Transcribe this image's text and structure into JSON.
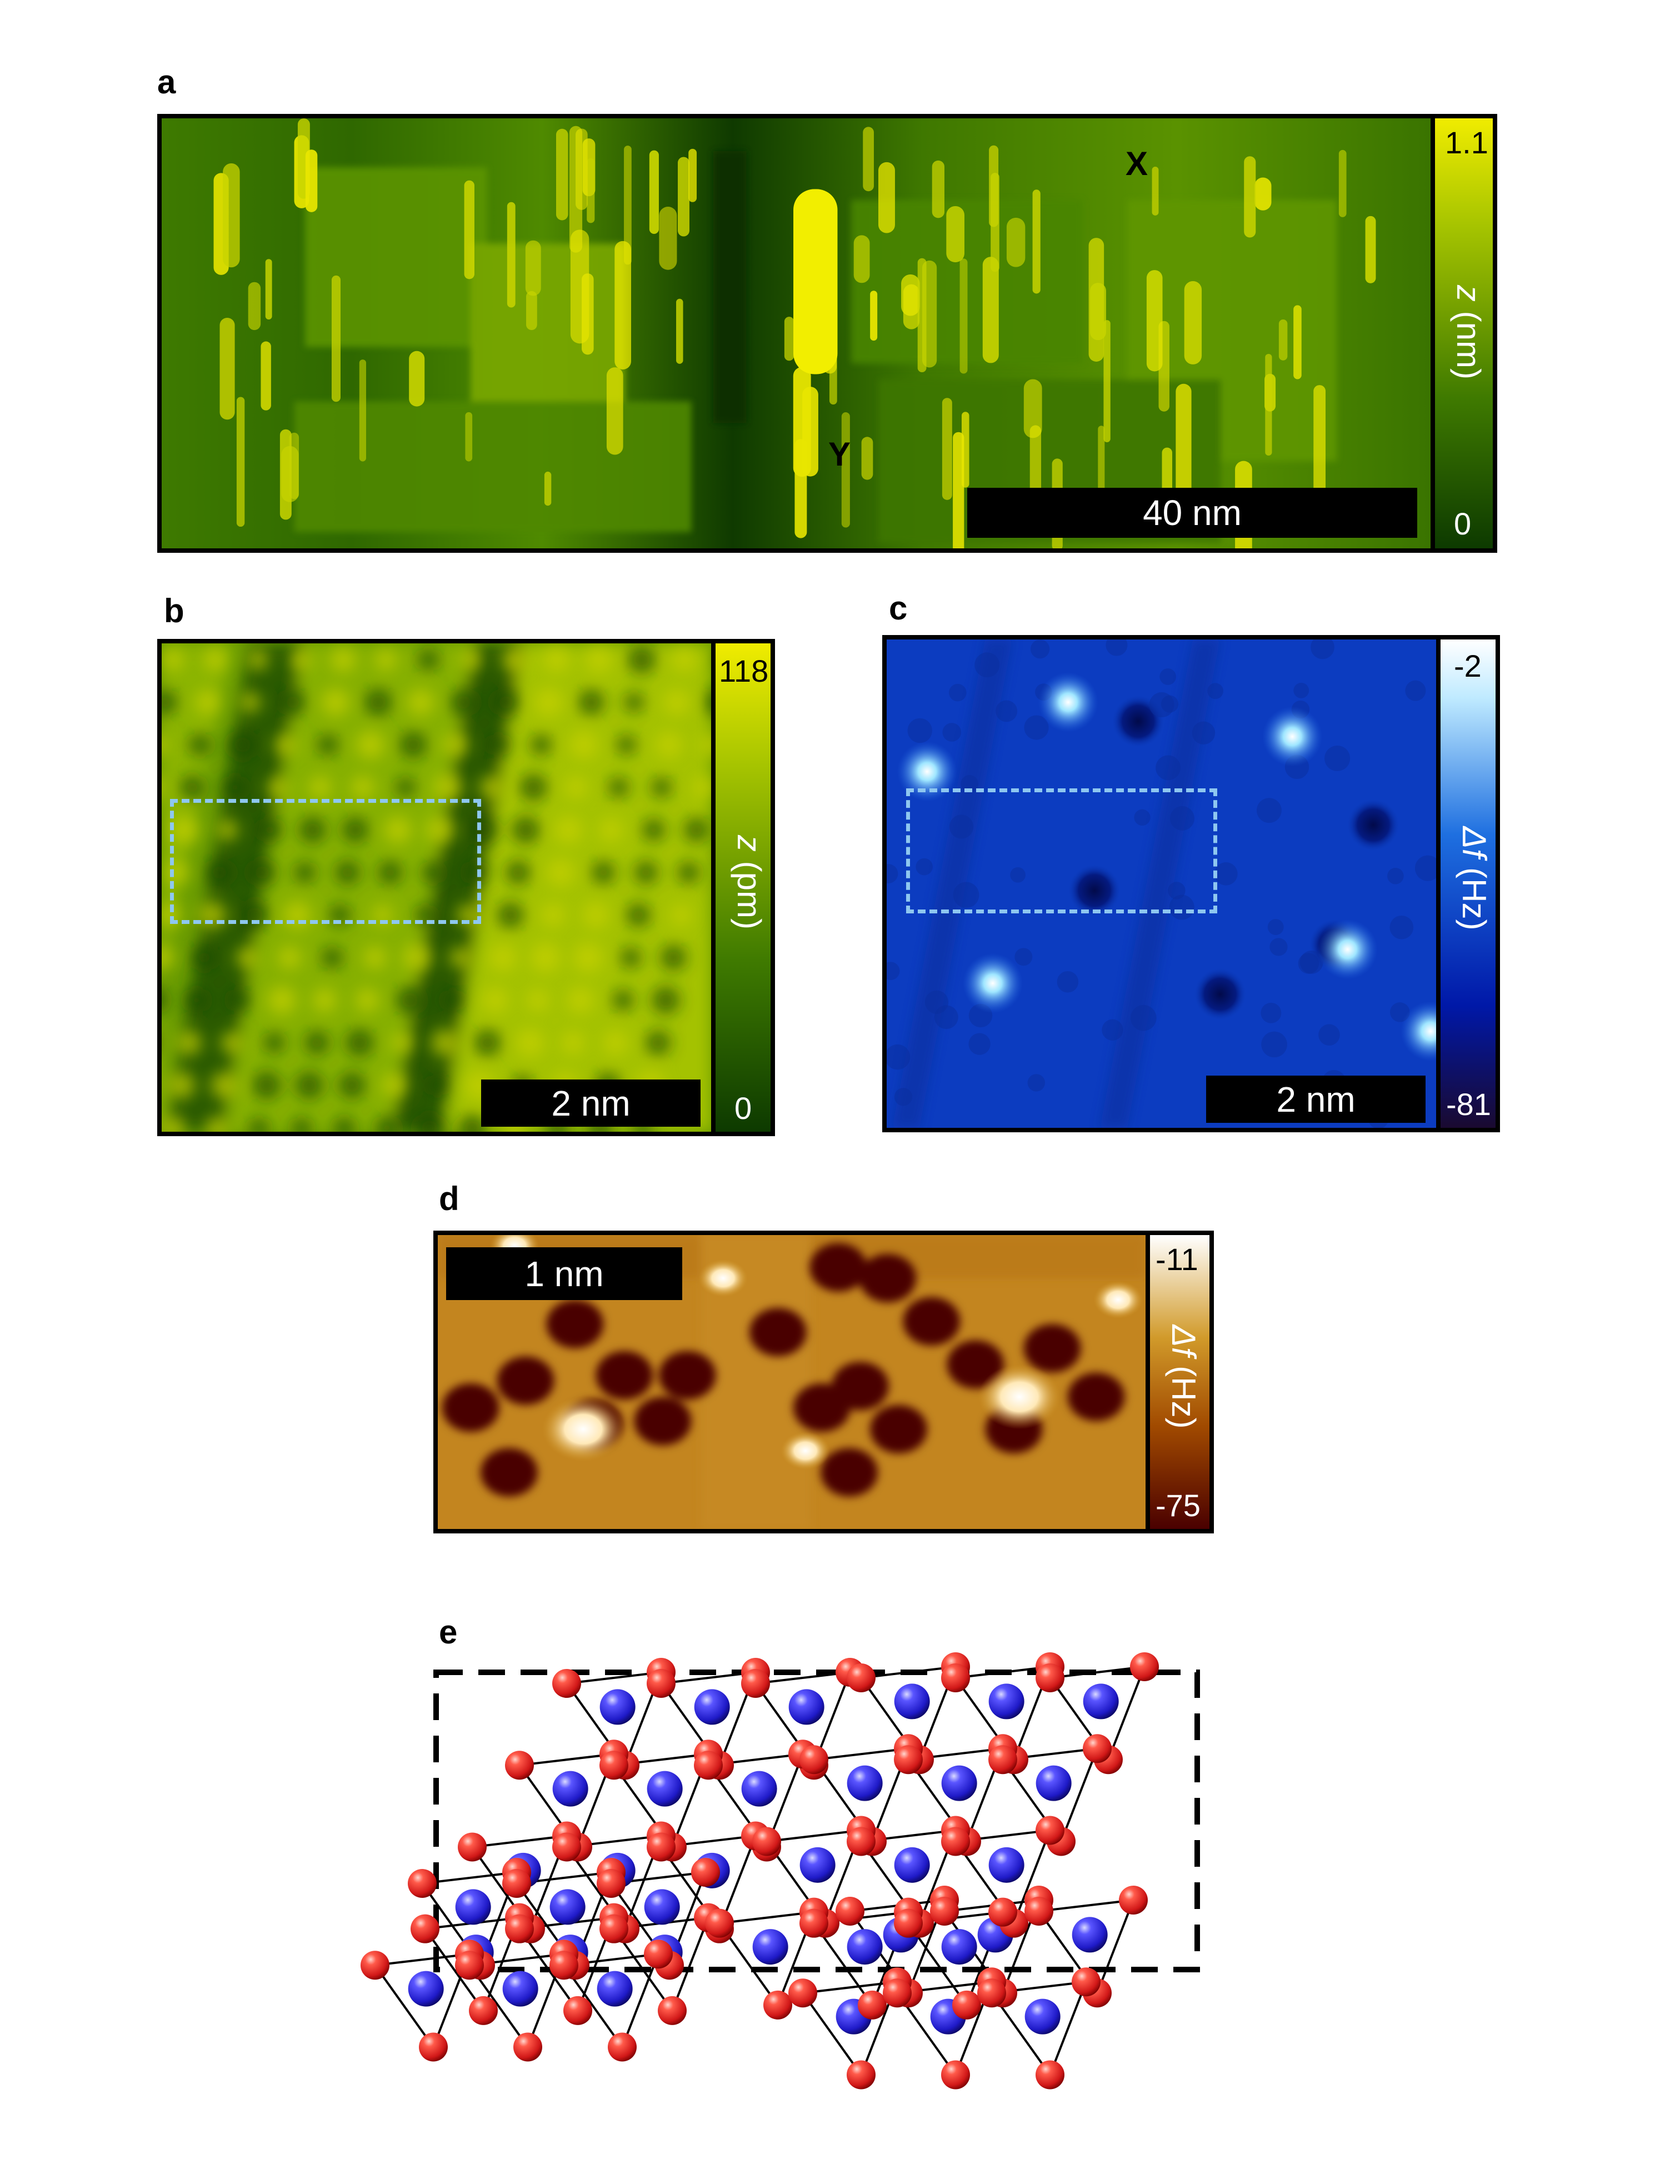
{
  "panels": {
    "a": {
      "letter": "a",
      "scalebar": "40 nm",
      "marker_x": "X",
      "marker_y": "Y",
      "colorbar": {
        "max": "1.1",
        "min": "0",
        "label_var": "z",
        "label_unit": " (nm)",
        "colors": [
          "#0d3a00",
          "#3f7a00",
          "#a6c400",
          "#f0ec00"
        ]
      }
    },
    "b": {
      "letter": "b",
      "scalebar": "2 nm",
      "colorbar": {
        "max": "118",
        "min": "0",
        "label_var": "z",
        "label_unit": " (pm)",
        "colors": [
          "#0d3a00",
          "#3f7a00",
          "#a6c400",
          "#f0ec00"
        ]
      },
      "dashed_color": "#8ec7f0"
    },
    "c": {
      "letter": "c",
      "scalebar": "2 nm",
      "colorbar": {
        "max": "-2",
        "min": "-81",
        "label_var": "Δf",
        "label_unit": " (Hz)",
        "colors": [
          "#1a0a30",
          "#0018a8",
          "#1e6fe0",
          "#bfeaff",
          "#ffffff"
        ]
      },
      "dashed_color": "#8ec7f0"
    },
    "d": {
      "letter": "d",
      "scalebar": "1 nm",
      "colorbar": {
        "max": "-11",
        "min": "-75",
        "label_var": "Δf",
        "label_unit": " (Hz)",
        "colors": [
          "#4a0000",
          "#a14a00",
          "#d19a2a",
          "#ffffff"
        ]
      }
    },
    "e": {
      "letter": "e",
      "atom_colors": {
        "red": "#e0252a",
        "blue": "#2a24d6"
      }
    }
  }
}
